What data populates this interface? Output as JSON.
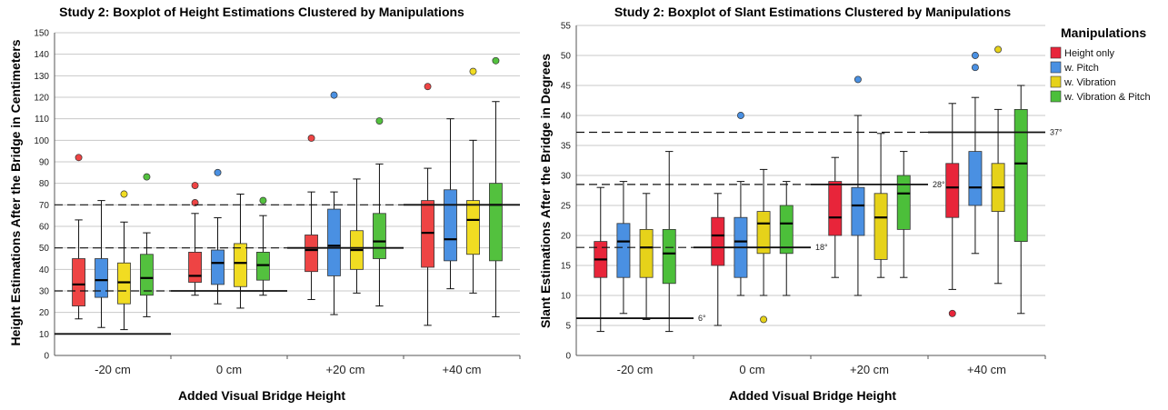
{
  "colors": {
    "series": [
      "#e8253a",
      "#4a90e2",
      "#e6d21a",
      "#4cbf3a"
    ],
    "series_left": [
      "#ee4444",
      "#4a90e2",
      "#f1dc22",
      "#53c13e"
    ],
    "grid": "#c8c8c8",
    "text": "#000000"
  },
  "legend": {
    "title": "Manipulations",
    "items": [
      "Height only",
      "w. Pitch",
      "w. Vibration",
      "w. Vibration & Pitch"
    ]
  },
  "chart_data": [
    {
      "type": "box",
      "title": "Study 2: Boxplot of Height Estimations Clustered by Manipulations",
      "xlabel": "Added Visual Bridge Height",
      "ylabel": "Height Estimations After the Bridge in Centimeters",
      "categories": [
        "-20 cm",
        "0 cm",
        "+20 cm",
        "+40 cm"
      ],
      "ylim": [
        0,
        150
      ],
      "yticks": [
        0,
        10,
        20,
        30,
        40,
        50,
        60,
        70,
        80,
        90,
        100,
        110,
        120,
        130,
        140,
        150
      ],
      "grid": true,
      "series": [
        {
          "name": "Height only",
          "boxes": [
            {
              "min": 17,
              "q1": 23,
              "median": 33,
              "q3": 45,
              "max": 63,
              "outliers": [
                92
              ]
            },
            {
              "min": 28,
              "q1": 34,
              "median": 37,
              "q3": 48,
              "max": 66,
              "outliers": [
                71,
                79
              ]
            },
            {
              "min": 26,
              "q1": 39,
              "median": 49,
              "q3": 56,
              "max": 76,
              "outliers": [
                101
              ]
            },
            {
              "min": 14,
              "q1": 41,
              "median": 57,
              "q3": 72,
              "max": 87,
              "outliers": [
                125
              ]
            }
          ]
        },
        {
          "name": "w. Pitch",
          "boxes": [
            {
              "min": 13,
              "q1": 27,
              "median": 35,
              "q3": 45,
              "max": 72,
              "outliers": []
            },
            {
              "min": 24,
              "q1": 33,
              "median": 43,
              "q3": 49,
              "max": 64,
              "outliers": [
                85
              ]
            },
            {
              "min": 19,
              "q1": 37,
              "median": 51,
              "q3": 68,
              "max": 76,
              "outliers": [
                121
              ]
            },
            {
              "min": 31,
              "q1": 44,
              "median": 54,
              "q3": 77,
              "max": 110,
              "outliers": []
            }
          ]
        },
        {
          "name": "w. Vibration",
          "boxes": [
            {
              "min": 12,
              "q1": 24,
              "median": 34,
              "q3": 43,
              "max": 62,
              "outliers": [
                75
              ]
            },
            {
              "min": 22,
              "q1": 32,
              "median": 43,
              "q3": 52,
              "max": 75,
              "outliers": []
            },
            {
              "min": 29,
              "q1": 40,
              "median": 49,
              "q3": 58,
              "max": 82,
              "outliers": []
            },
            {
              "min": 29,
              "q1": 47,
              "median": 63,
              "q3": 72,
              "max": 100,
              "outliers": [
                132
              ]
            }
          ]
        },
        {
          "name": "w. Vibration & Pitch",
          "boxes": [
            {
              "min": 18,
              "q1": 28,
              "median": 36,
              "q3": 47,
              "max": 57,
              "outliers": [
                83
              ]
            },
            {
              "min": 28,
              "q1": 35,
              "median": 42,
              "q3": 48,
              "max": 65,
              "outliers": [
                72
              ]
            },
            {
              "min": 23,
              "q1": 45,
              "median": 53,
              "q3": 66,
              "max": 89,
              "outliers": [
                109
              ]
            },
            {
              "min": 18,
              "q1": 44,
              "median": 70,
              "q3": 80,
              "max": 118,
              "outliers": [
                137
              ]
            }
          ]
        }
      ],
      "reference_lines": [
        {
          "y": 10,
          "x_start": 0,
          "x_end": 1,
          "style": "solid"
        },
        {
          "y": 30,
          "x_start": 0,
          "x_end": 1,
          "style": "dashed"
        },
        {
          "y": 30,
          "x_start": 1,
          "x_end": 2,
          "style": "solid"
        },
        {
          "y": 50,
          "x_start": 0,
          "x_end": 2,
          "style": "dashed"
        },
        {
          "y": 50,
          "x_start": 2,
          "x_end": 3,
          "style": "solid"
        },
        {
          "y": 70,
          "x_start": 0,
          "x_end": 3,
          "style": "dashed"
        },
        {
          "y": 70,
          "x_start": 3,
          "x_end": 4,
          "style": "solid"
        }
      ]
    },
    {
      "type": "box",
      "title": "Study 2: Boxplot of Slant Estimations Clustered by Manipulations",
      "xlabel": "Added Visual Bridge Height",
      "ylabel": "Slant Estimations After the Bridge in Degrees",
      "categories": [
        "-20 cm",
        "0 cm",
        "+20 cm",
        "+40 cm"
      ],
      "ylim": [
        0,
        55
      ],
      "yticks": [
        0,
        5,
        10,
        15,
        20,
        25,
        30,
        35,
        40,
        45,
        50,
        55
      ],
      "grid": true,
      "series": [
        {
          "name": "Height only",
          "boxes": [
            {
              "min": 4,
              "q1": 13,
              "median": 16,
              "q3": 19,
              "max": 28,
              "outliers": []
            },
            {
              "min": 5,
              "q1": 15,
              "median": 20,
              "q3": 23,
              "max": 27,
              "outliers": []
            },
            {
              "min": 13,
              "q1": 20,
              "median": 23,
              "q3": 29,
              "max": 33,
              "outliers": []
            },
            {
              "min": 11,
              "q1": 23,
              "median": 28,
              "q3": 32,
              "max": 42,
              "outliers": [
                7
              ]
            }
          ]
        },
        {
          "name": "w. Pitch",
          "boxes": [
            {
              "min": 7,
              "q1": 13,
              "median": 19,
              "q3": 22,
              "max": 29,
              "outliers": []
            },
            {
              "min": 10,
              "q1": 13,
              "median": 19,
              "q3": 23,
              "max": 29,
              "outliers": [
                40
              ]
            },
            {
              "min": 10,
              "q1": 20,
              "median": 25,
              "q3": 28,
              "max": 40,
              "outliers": [
                46
              ]
            },
            {
              "min": 17,
              "q1": 25,
              "median": 28,
              "q3": 34,
              "max": 43,
              "outliers": [
                48,
                50
              ]
            }
          ]
        },
        {
          "name": "w. Vibration",
          "boxes": [
            {
              "min": 6,
              "q1": 13,
              "median": 18,
              "q3": 21,
              "max": 27,
              "outliers": []
            },
            {
              "min": 10,
              "q1": 17,
              "median": 22,
              "q3": 24,
              "max": 31,
              "outliers": [
                6
              ]
            },
            {
              "min": 13,
              "q1": 16,
              "median": 23,
              "q3": 27,
              "max": 37,
              "outliers": []
            },
            {
              "min": 12,
              "q1": 24,
              "median": 28,
              "q3": 32,
              "max": 41,
              "outliers": [
                51
              ]
            }
          ]
        },
        {
          "name": "w. Vibration & Pitch",
          "boxes": [
            {
              "min": 4,
              "q1": 12,
              "median": 17,
              "q3": 21,
              "max": 34,
              "outliers": []
            },
            {
              "min": 10,
              "q1": 17,
              "median": 22,
              "q3": 25,
              "max": 29,
              "outliers": []
            },
            {
              "min": 13,
              "q1": 21,
              "median": 27,
              "q3": 30,
              "max": 34,
              "outliers": []
            },
            {
              "min": 7,
              "q1": 19,
              "median": 32,
              "q3": 41,
              "max": 45,
              "outliers": []
            }
          ]
        }
      ],
      "reference_lines": [
        {
          "y": 6.2,
          "x_start": 0,
          "x_end": 1,
          "style": "solid",
          "label": "6°"
        },
        {
          "y": 18,
          "x_start": 0,
          "x_end": 1,
          "style": "dashed"
        },
        {
          "y": 18,
          "x_start": 1,
          "x_end": 2,
          "style": "solid",
          "label": "18°"
        },
        {
          "y": 28.5,
          "x_start": 0,
          "x_end": 2,
          "style": "dashed"
        },
        {
          "y": 28.5,
          "x_start": 2,
          "x_end": 3,
          "style": "solid",
          "label": "28°"
        },
        {
          "y": 37.2,
          "x_start": 0,
          "x_end": 3,
          "style": "dashed"
        },
        {
          "y": 37.2,
          "x_start": 3,
          "x_end": 4,
          "style": "solid",
          "label": "37°"
        }
      ]
    }
  ]
}
